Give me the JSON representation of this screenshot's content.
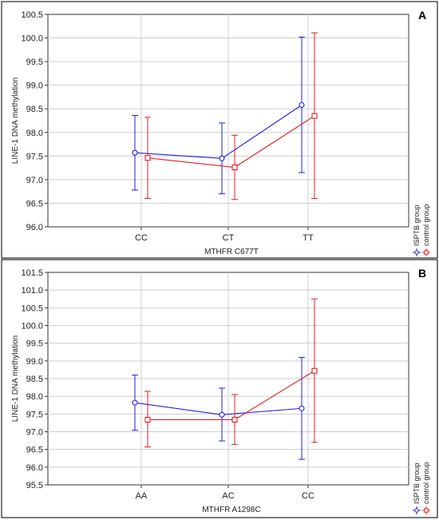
{
  "chart_data": [
    {
      "type": "line",
      "panel_label": "A",
      "xlabel": "MTHFR C677T",
      "ylabel": "LINE-1 DNA methylation",
      "categories": [
        "CC",
        "CT",
        "TT"
      ],
      "ylim": [
        96.0,
        100.5
      ],
      "yticks": [
        "96.0",
        "96.5",
        "97.0",
        "97.5",
        "98.0",
        "98.5",
        "99.0",
        "99.5",
        "100.0",
        "100.5"
      ],
      "grid": true,
      "legend_placement": "right",
      "series": [
        {
          "name": "ISPTB group",
          "color": "#1f1fe0",
          "marker": "circle",
          "values": [
            97.57,
            97.45,
            98.58
          ],
          "lower": [
            96.78,
            96.7,
            97.15
          ],
          "upper": [
            98.36,
            98.2,
            100.02
          ]
        },
        {
          "name": "control group",
          "color": "#e02020",
          "marker": "square",
          "values": [
            97.46,
            97.26,
            98.35
          ],
          "lower": [
            96.6,
            96.58,
            96.6
          ],
          "upper": [
            98.32,
            97.94,
            100.11
          ]
        }
      ]
    },
    {
      "type": "line",
      "panel_label": "B",
      "xlabel": "MTHFR A1298C",
      "ylabel": "LINE-1 DNA methylation",
      "categories": [
        "AA",
        "AC",
        "CC"
      ],
      "ylim": [
        95.5,
        101.5
      ],
      "yticks": [
        "95.5",
        "96.0",
        "96.5",
        "97.0",
        "97.5",
        "98.0",
        "98.5",
        "99.0",
        "99.5",
        "100.0",
        "100.5",
        "101.0",
        "101.5"
      ],
      "grid": true,
      "legend_placement": "right",
      "series": [
        {
          "name": "ISPTB group",
          "color": "#1f1fe0",
          "marker": "circle",
          "values": [
            97.82,
            97.48,
            97.66
          ],
          "lower": [
            97.04,
            96.74,
            96.22
          ],
          "upper": [
            98.6,
            98.23,
            99.1
          ]
        },
        {
          "name": "control group",
          "color": "#e02020",
          "marker": "square",
          "values": [
            97.34,
            97.34,
            98.72
          ],
          "lower": [
            96.57,
            96.64,
            96.7
          ],
          "upper": [
            98.14,
            98.05,
            100.75
          ]
        }
      ]
    }
  ]
}
